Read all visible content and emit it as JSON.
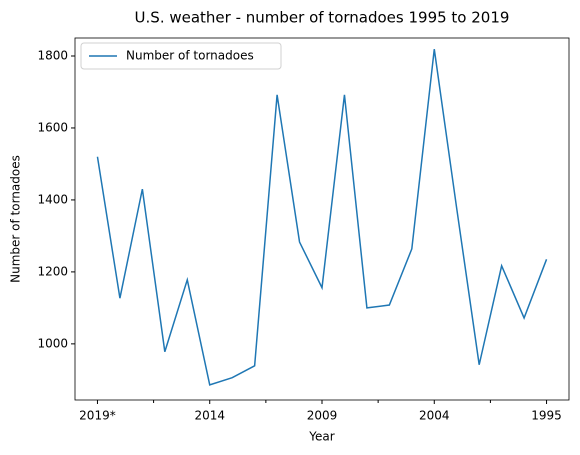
{
  "chart_data": {
    "type": "line",
    "title": "U.S. weather - number of tornadoes 1995 to 2019",
    "x_label": "Year",
    "y_label": "Number of tornadoes",
    "categories": [
      "2019*",
      null,
      null,
      null,
      null,
      "2014",
      null,
      null,
      null,
      null,
      "2009",
      null,
      null,
      null,
      null,
      "2004",
      null,
      null,
      null,
      null,
      "1995"
    ],
    "series": [
      {
        "name": "Number of tornadoes",
        "color": "#1f77b4",
        "values": [
          1520,
          1127,
          1430,
          978,
          1178,
          886,
          906,
          939,
          1692,
          1283,
          1156,
          1692,
          1100,
          1108,
          1264,
          1819,
          1376,
          942,
          1217,
          1072,
          1235
        ]
      }
    ],
    "xlim": [
      -1,
      21
    ],
    "ylim": [
      844,
      1850
    ],
    "yticks": [
      1000,
      1200,
      1400,
      1600,
      1800
    ],
    "legend": "upper left",
    "grid": false
  }
}
